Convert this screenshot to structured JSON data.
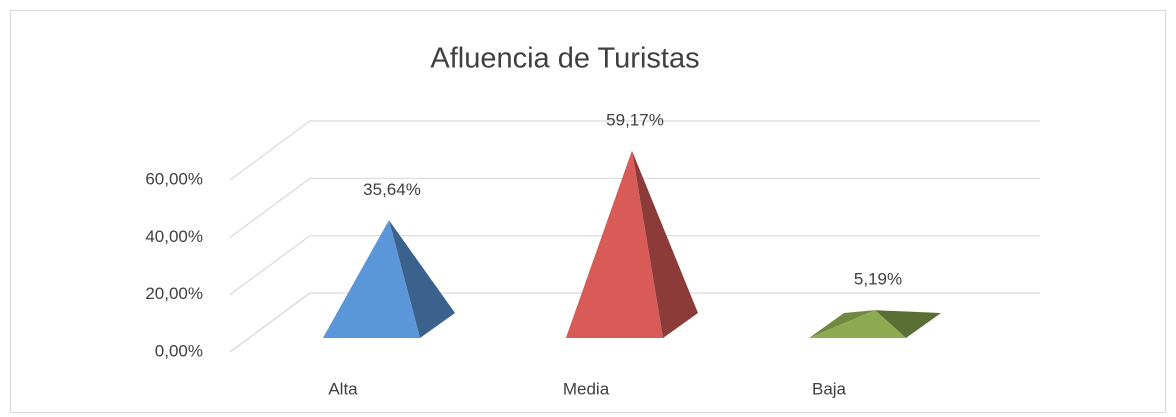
{
  "chart_data": {
    "type": "pyramid3d",
    "title": "Afluencia de Turistas",
    "categories": [
      "Alta",
      "Media",
      "Baja"
    ],
    "values": [
      35.64,
      59.17,
      5.19
    ],
    "value_labels": [
      "35,64%",
      "59,17%",
      "5,19%"
    ],
    "colors": [
      "#5b96d8",
      "#d95b57",
      "#8cab50"
    ],
    "ylim": [
      0,
      60
    ],
    "yticks": [
      {
        "value": 0,
        "label": "0,00%"
      },
      {
        "value": 20,
        "label": "20,00%"
      },
      {
        "value": 40,
        "label": "40,00%"
      },
      {
        "value": 60,
        "label": "60,00%"
      }
    ],
    "grid": true
  }
}
